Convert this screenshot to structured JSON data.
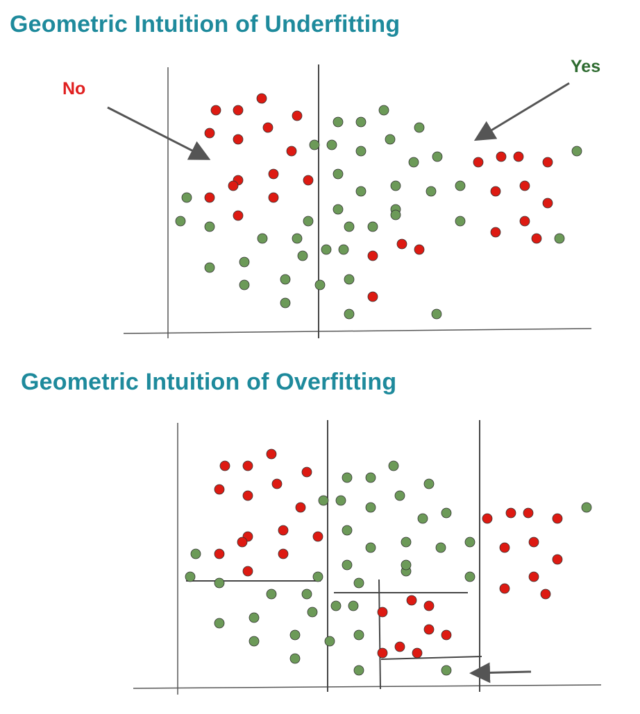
{
  "underfitting": {
    "title": "Geometric Intuition of Underfitting",
    "label_no": "No",
    "label_yes": "Yes",
    "split_count": 1
  },
  "overfitting": {
    "title": "Geometric Intuition of Overfitting",
    "split_count": 7
  },
  "colors": {
    "title": "#1e8a9c",
    "no_red": "#e02020",
    "yes_green": "#2e6b30",
    "red_point": "#dd1a12",
    "green_point": "#6c9a58",
    "line": "#555555"
  }
}
